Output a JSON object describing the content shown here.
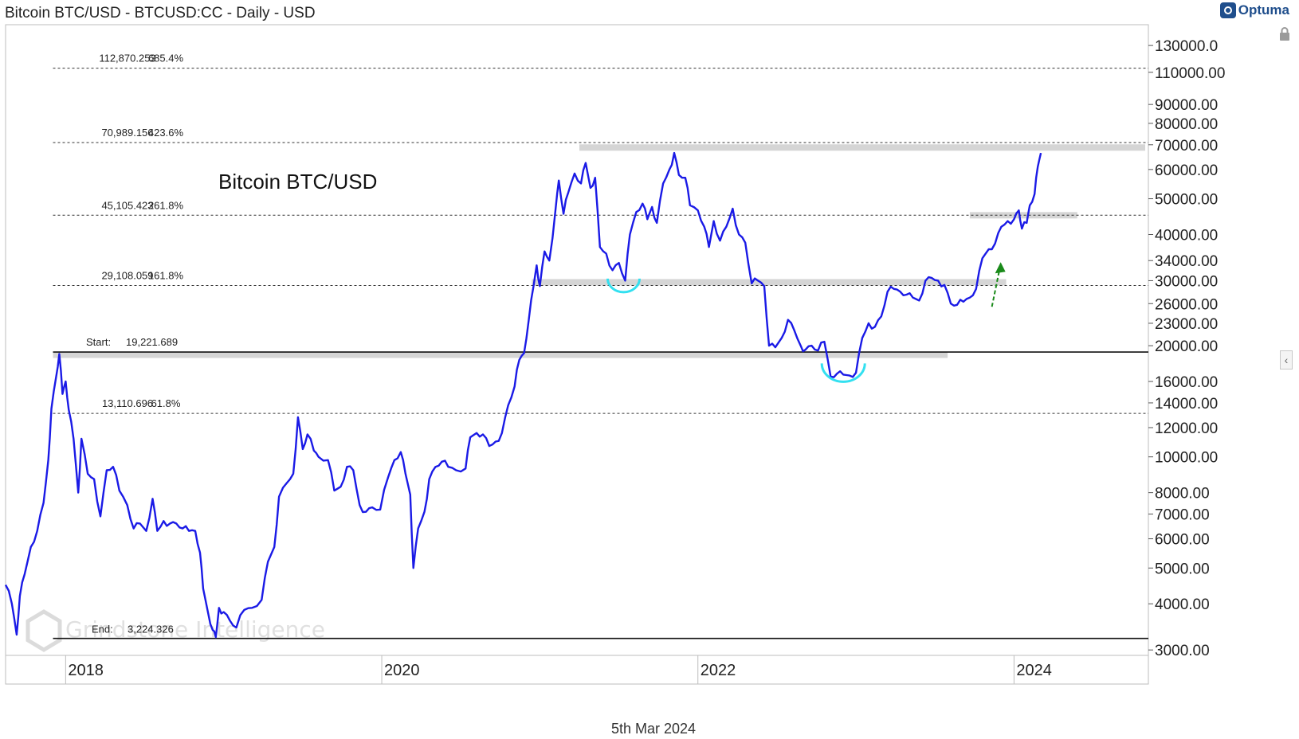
{
  "header": {
    "title": "Bitcoin BTC/USD - BTCUSD:CC - Daily - USD"
  },
  "brand": {
    "name": "Optuma",
    "icon": "optuma-logo-icon"
  },
  "footer": {
    "date": "5th Mar 2024"
  },
  "watermark": {
    "name": "Grindstone Intelligence"
  },
  "chart_data": {
    "type": "line",
    "title": "Bitcoin BTC/USD",
    "scale": "log",
    "ylim": [
      2900,
      148000
    ],
    "xlim": [
      2017.62,
      2024.85
    ],
    "line_color": "#1a1ae6",
    "y_ticks": [
      {
        "value": 130000,
        "label": "130000.0"
      },
      {
        "value": 110000,
        "label": "110000.00"
      },
      {
        "value": 90000,
        "label": "90000.00"
      },
      {
        "value": 80000,
        "label": "80000.00"
      },
      {
        "value": 70000,
        "label": "70000.00"
      },
      {
        "value": 60000,
        "label": "60000.00"
      },
      {
        "value": 50000,
        "label": "50000.00"
      },
      {
        "value": 40000,
        "label": "40000.00"
      },
      {
        "value": 34000,
        "label": "34000.00"
      },
      {
        "value": 30000,
        "label": "30000.00"
      },
      {
        "value": 26000,
        "label": "26000.00"
      },
      {
        "value": 23000,
        "label": "23000.00"
      },
      {
        "value": 20000,
        "label": "20000.00"
      },
      {
        "value": 16000,
        "label": "16000.00"
      },
      {
        "value": 14000,
        "label": "14000.00"
      },
      {
        "value": 12000,
        "label": "12000.00"
      },
      {
        "value": 10000,
        "label": "10000.00"
      },
      {
        "value": 8000,
        "label": "8000.00"
      },
      {
        "value": 7000,
        "label": "7000.00"
      },
      {
        "value": 6000,
        "label": "6000.00"
      },
      {
        "value": 5000,
        "label": "5000.00"
      },
      {
        "value": 4000,
        "label": "4000.00"
      },
      {
        "value": 3000,
        "label": "3000.00"
      }
    ],
    "x_ticks": [
      {
        "value": 2018.0,
        "label": "2018"
      },
      {
        "value": 2020.0,
        "label": "2020"
      },
      {
        "value": 2022.0,
        "label": "2022"
      },
      {
        "value": 2024.0,
        "label": "2024"
      }
    ],
    "fib_levels": [
      {
        "price": 112870.253,
        "price_label": "112,870.253",
        "pct_label": "685.4%"
      },
      {
        "price": 70989.156,
        "price_label": "70,989.156",
        "pct_label": "423.6%"
      },
      {
        "price": 45105.423,
        "price_label": "45,105.423",
        "pct_label": "261.8%"
      },
      {
        "price": 29108.059,
        "price_label": "29,108.059",
        "pct_label": "161.8%"
      },
      {
        "price": 13110.696,
        "price_label": "13,110.696",
        "pct_label": "61.8%"
      }
    ],
    "start_level": {
      "label": "Start:",
      "price": 19221.689,
      "price_label": "19,221.689"
    },
    "end_level": {
      "label": "End:",
      "price": 3224.326,
      "price_label": "3,224.326"
    },
    "resistance_zones": [
      {
        "x_start": 2021.25,
        "x_end": 2024.83,
        "price": 68800
      },
      {
        "x_start": 2020.95,
        "x_end": 2023.95,
        "price": 29700
      },
      {
        "x_start": 2023.72,
        "x_end": 2024.4,
        "price": 45100
      },
      {
        "x_start": 2017.92,
        "x_end": 2023.58,
        "price": 18900
      }
    ],
    "annotations": [
      {
        "type": "arc",
        "x": 2021.53,
        "price": 29500,
        "color": "#33e0f0"
      },
      {
        "type": "arc",
        "x": 2022.92,
        "price": 17200,
        "color": "#33e0f0"
      },
      {
        "type": "arrow",
        "x": 2023.86,
        "price_from": 25500,
        "price_to": 33000,
        "color": "#1a8a1a"
      }
    ],
    "series": [
      {
        "points": [
          [
            2017.62,
            4500
          ],
          [
            2017.66,
            4000
          ],
          [
            2017.69,
            3300
          ],
          [
            2017.71,
            4200
          ],
          [
            2017.74,
            4800
          ],
          [
            2017.78,
            5700
          ],
          [
            2017.82,
            6300
          ],
          [
            2017.86,
            7500
          ],
          [
            2017.89,
            9800
          ],
          [
            2017.91,
            13500
          ],
          [
            2017.94,
            16500
          ],
          [
            2017.96,
            19000
          ],
          [
            2017.98,
            14800
          ],
          [
            2018.0,
            16000
          ],
          [
            2018.02,
            13400
          ],
          [
            2018.05,
            11200
          ],
          [
            2018.08,
            8000
          ],
          [
            2018.1,
            11200
          ],
          [
            2018.14,
            9000
          ],
          [
            2018.18,
            8700
          ],
          [
            2018.22,
            6900
          ],
          [
            2018.26,
            9200
          ],
          [
            2018.3,
            9400
          ],
          [
            2018.34,
            8100
          ],
          [
            2018.39,
            7400
          ],
          [
            2018.43,
            6400
          ],
          [
            2018.47,
            6600
          ],
          [
            2018.51,
            6300
          ],
          [
            2018.55,
            7700
          ],
          [
            2018.58,
            6300
          ],
          [
            2018.62,
            6700
          ],
          [
            2018.66,
            6600
          ],
          [
            2018.7,
            6600
          ],
          [
            2018.74,
            6400
          ],
          [
            2018.78,
            6300
          ],
          [
            2018.82,
            6300
          ],
          [
            2018.85,
            5500
          ],
          [
            2018.87,
            4400
          ],
          [
            2018.9,
            3800
          ],
          [
            2018.93,
            3400
          ],
          [
            2018.95,
            3250
          ],
          [
            2018.97,
            3900
          ],
          [
            2019.0,
            3800
          ],
          [
            2019.04,
            3600
          ],
          [
            2019.08,
            3450
          ],
          [
            2019.13,
            3850
          ],
          [
            2019.18,
            3900
          ],
          [
            2019.24,
            4100
          ],
          [
            2019.28,
            5200
          ],
          [
            2019.32,
            5700
          ],
          [
            2019.35,
            7800
          ],
          [
            2019.4,
            8500
          ],
          [
            2019.44,
            9000
          ],
          [
            2019.47,
            12800
          ],
          [
            2019.5,
            10500
          ],
          [
            2019.53,
            11500
          ],
          [
            2019.57,
            10400
          ],
          [
            2019.6,
            10000
          ],
          [
            2019.66,
            9800
          ],
          [
            2019.7,
            8100
          ],
          [
            2019.74,
            8300
          ],
          [
            2019.78,
            9400
          ],
          [
            2019.82,
            9200
          ],
          [
            2019.86,
            7400
          ],
          [
            2019.9,
            7100
          ],
          [
            2019.94,
            7300
          ],
          [
            2019.99,
            7200
          ],
          [
            2020.04,
            8800
          ],
          [
            2020.08,
            9800
          ],
          [
            2020.12,
            10300
          ],
          [
            2020.15,
            9000
          ],
          [
            2020.18,
            7900
          ],
          [
            2020.2,
            5000
          ],
          [
            2020.23,
            6400
          ],
          [
            2020.27,
            7100
          ],
          [
            2020.3,
            8700
          ],
          [
            2020.34,
            9400
          ],
          [
            2020.38,
            9700
          ],
          [
            2020.42,
            9400
          ],
          [
            2020.47,
            9200
          ],
          [
            2020.53,
            9300
          ],
          [
            2020.56,
            11300
          ],
          [
            2020.6,
            11600
          ],
          [
            2020.64,
            11500
          ],
          [
            2020.68,
            10700
          ],
          [
            2020.72,
            11000
          ],
          [
            2020.76,
            11600
          ],
          [
            2020.8,
            13800
          ],
          [
            2020.84,
            15500
          ],
          [
            2020.87,
            18300
          ],
          [
            2020.9,
            19100
          ],
          [
            2020.93,
            23500
          ],
          [
            2020.96,
            29000
          ],
          [
            2020.98,
            33000
          ],
          [
            2021.0,
            29000
          ],
          [
            2021.03,
            36000
          ],
          [
            2021.06,
            34000
          ],
          [
            2021.1,
            47000
          ],
          [
            2021.12,
            56000
          ],
          [
            2021.15,
            45500
          ],
          [
            2021.18,
            52000
          ],
          [
            2021.22,
            58500
          ],
          [
            2021.26,
            55000
          ],
          [
            2021.29,
            62500
          ],
          [
            2021.32,
            53500
          ],
          [
            2021.35,
            57000
          ],
          [
            2021.38,
            37000
          ],
          [
            2021.42,
            35500
          ],
          [
            2021.46,
            32000
          ],
          [
            2021.5,
            33500
          ],
          [
            2021.54,
            30000
          ],
          [
            2021.57,
            40000
          ],
          [
            2021.61,
            46000
          ],
          [
            2021.65,
            48500
          ],
          [
            2021.68,
            44000
          ],
          [
            2021.71,
            47500
          ],
          [
            2021.74,
            43000
          ],
          [
            2021.78,
            55000
          ],
          [
            2021.82,
            60000
          ],
          [
            2021.85,
            66500
          ],
          [
            2021.88,
            58000
          ],
          [
            2021.92,
            57000
          ],
          [
            2021.95,
            48000
          ],
          [
            2022.0,
            46500
          ],
          [
            2022.04,
            42000
          ],
          [
            2022.07,
            37000
          ],
          [
            2022.1,
            43500
          ],
          [
            2022.14,
            38500
          ],
          [
            2022.18,
            42000
          ],
          [
            2022.22,
            47000
          ],
          [
            2022.26,
            40000
          ],
          [
            2022.3,
            38000
          ],
          [
            2022.34,
            29500
          ],
          [
            2022.38,
            30000
          ],
          [
            2022.42,
            29000
          ],
          [
            2022.45,
            20000
          ],
          [
            2022.49,
            19800
          ],
          [
            2022.53,
            21000
          ],
          [
            2022.57,
            23500
          ],
          [
            2022.61,
            22000
          ],
          [
            2022.65,
            20000
          ],
          [
            2022.68,
            19500
          ],
          [
            2022.72,
            20000
          ],
          [
            2022.76,
            19400
          ],
          [
            2022.8,
            20500
          ],
          [
            2022.84,
            16500
          ],
          [
            2022.88,
            16800
          ],
          [
            2022.92,
            16700
          ],
          [
            2022.96,
            16600
          ],
          [
            2023.0,
            16900
          ],
          [
            2023.04,
            21000
          ],
          [
            2023.08,
            23000
          ],
          [
            2023.12,
            22500
          ],
          [
            2023.16,
            24000
          ],
          [
            2023.2,
            28000
          ],
          [
            2023.24,
            28500
          ],
          [
            2023.28,
            28000
          ],
          [
            2023.32,
            27500
          ],
          [
            2023.36,
            27000
          ],
          [
            2023.4,
            26500
          ],
          [
            2023.44,
            30000
          ],
          [
            2023.48,
            30500
          ],
          [
            2023.52,
            30000
          ],
          [
            2023.56,
            29200
          ],
          [
            2023.6,
            26000
          ],
          [
            2023.64,
            25800
          ],
          [
            2023.68,
            26300
          ],
          [
            2023.72,
            27000
          ],
          [
            2023.76,
            28500
          ],
          [
            2023.8,
            34500
          ],
          [
            2023.84,
            36500
          ],
          [
            2023.88,
            37800
          ],
          [
            2023.92,
            42000
          ],
          [
            2023.96,
            43500
          ],
          [
            2024.0,
            44000
          ],
          [
            2024.03,
            46500
          ],
          [
            2024.05,
            41500
          ],
          [
            2024.08,
            43000
          ],
          [
            2024.1,
            48000
          ],
          [
            2024.13,
            51500
          ],
          [
            2024.15,
            61000
          ],
          [
            2024.17,
            66500
          ]
        ]
      }
    ]
  }
}
